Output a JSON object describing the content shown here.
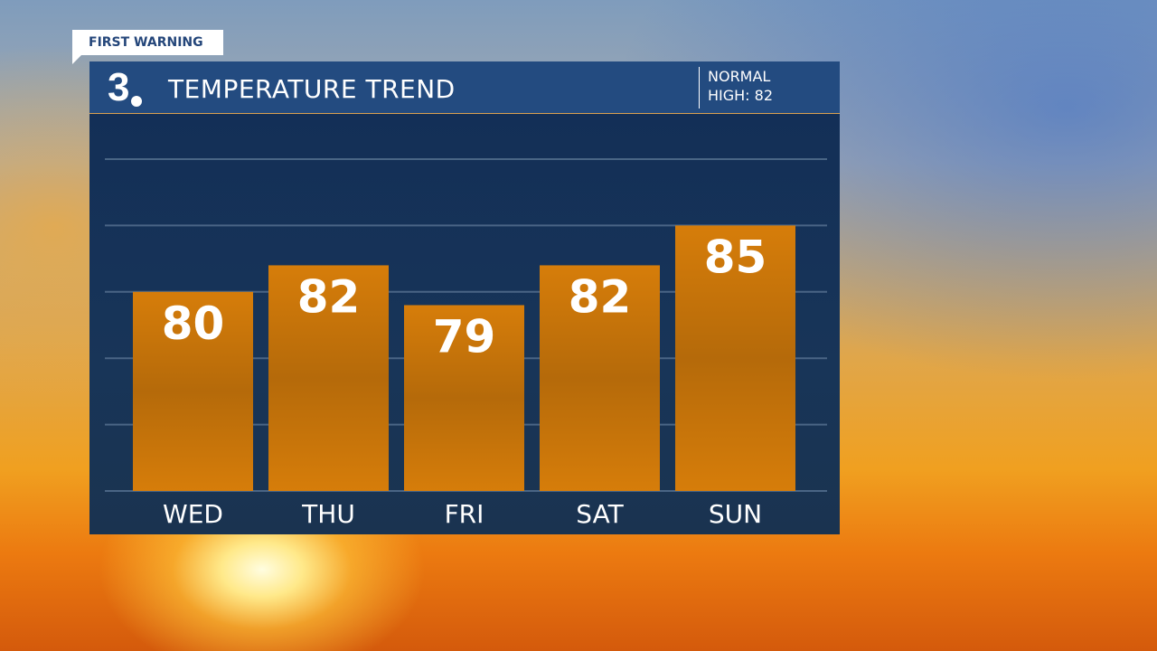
{
  "badge": "FIRST WARNING",
  "logo": "3",
  "header": {
    "title": "TEMPERATURE TREND",
    "normal_label": "NORMAL",
    "normal_value": "HIGH: 82"
  },
  "colors": {
    "bar": "#d67d0a",
    "panel": "#234b80",
    "grid": "#4a6585"
  },
  "chart_data": {
    "type": "bar",
    "title": "TEMPERATURE TREND",
    "categories": [
      "WED",
      "THU",
      "FRI",
      "SAT",
      "SUN"
    ],
    "values": [
      80,
      82,
      79,
      82,
      85
    ],
    "ylim": [
      65,
      90
    ],
    "grid": true,
    "gridlines": [
      65,
      70,
      75,
      80,
      85,
      90
    ]
  }
}
